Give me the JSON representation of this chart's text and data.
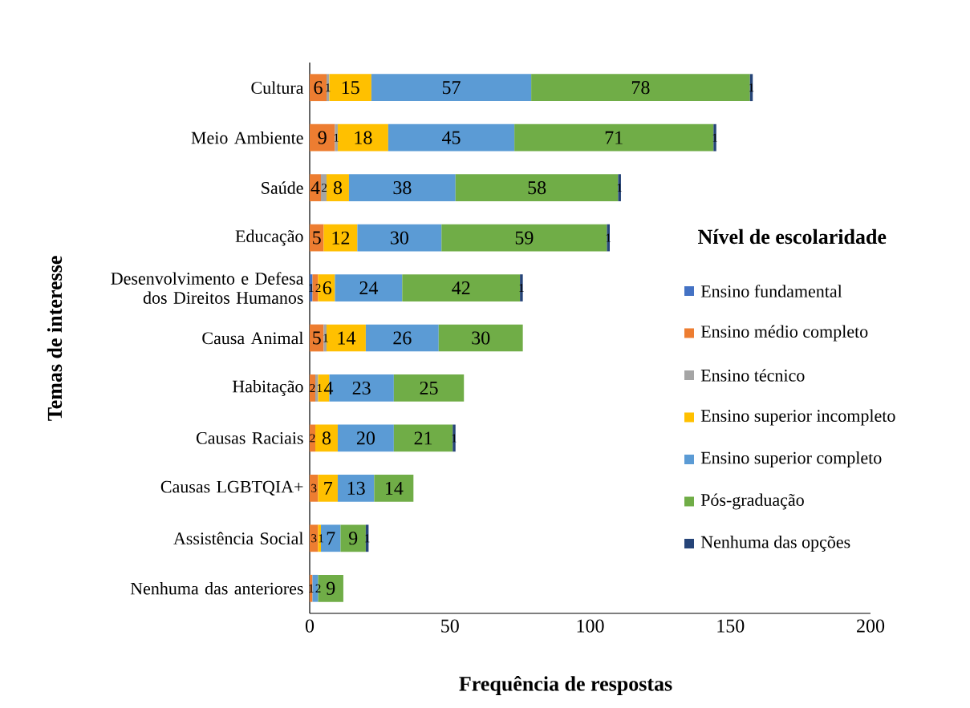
{
  "chart_data": {
    "type": "bar",
    "orientation": "horizontal",
    "stacked": true,
    "data_labels": true,
    "legend": "right",
    "xlabel": "Frequência de respostas",
    "ylabel": "Temas de interesse",
    "legend_title": "Nível de escolaridade",
    "categories": [
      "Cultura",
      "Meio Ambiente",
      "Saúde",
      "Educação",
      "Desenvolvimento e Defesa dos Direitos Humanos",
      "Causa Animal",
      "Habitação",
      "Causas Raciais",
      "Causas LGBTQIA+",
      "Assistência Social",
      "Nenhuma das anteriores"
    ],
    "xlim": [
      0,
      200
    ],
    "xticks": [
      0,
      50,
      100,
      150,
      200
    ],
    "series": [
      {
        "name": "Ensino fundamental",
        "color": "#4472c4",
        "values": [
          null,
          null,
          null,
          null,
          1,
          null,
          null,
          null,
          null,
          null,
          null
        ]
      },
      {
        "name": "Ensino médio completo",
        "color": "#ed7d31",
        "values": [
          6,
          9,
          4,
          5,
          2,
          5,
          2,
          2,
          3,
          3,
          1
        ]
      },
      {
        "name": "Ensino técnico",
        "color": "#a5a5a5",
        "values": [
          1,
          1,
          2,
          null,
          null,
          1,
          1,
          null,
          null,
          null,
          null
        ]
      },
      {
        "name": "Ensino superior incompleto",
        "color": "#ffc000",
        "values": [
          15,
          18,
          8,
          12,
          6,
          14,
          4,
          8,
          7,
          1,
          null
        ]
      },
      {
        "name": "Ensino superior completo",
        "color": "#5b9bd5",
        "values": [
          57,
          45,
          38,
          30,
          24,
          26,
          23,
          20,
          13,
          7,
          2
        ]
      },
      {
        "name": "Pós-graduação",
        "color": "#70ad47",
        "values": [
          78,
          71,
          58,
          59,
          42,
          30,
          25,
          21,
          14,
          9,
          9
        ]
      },
      {
        "name": "Nenhuma das opções",
        "color": "#264478",
        "values": [
          1,
          1,
          1,
          1,
          1,
          null,
          null,
          1,
          null,
          1,
          null
        ]
      }
    ]
  }
}
